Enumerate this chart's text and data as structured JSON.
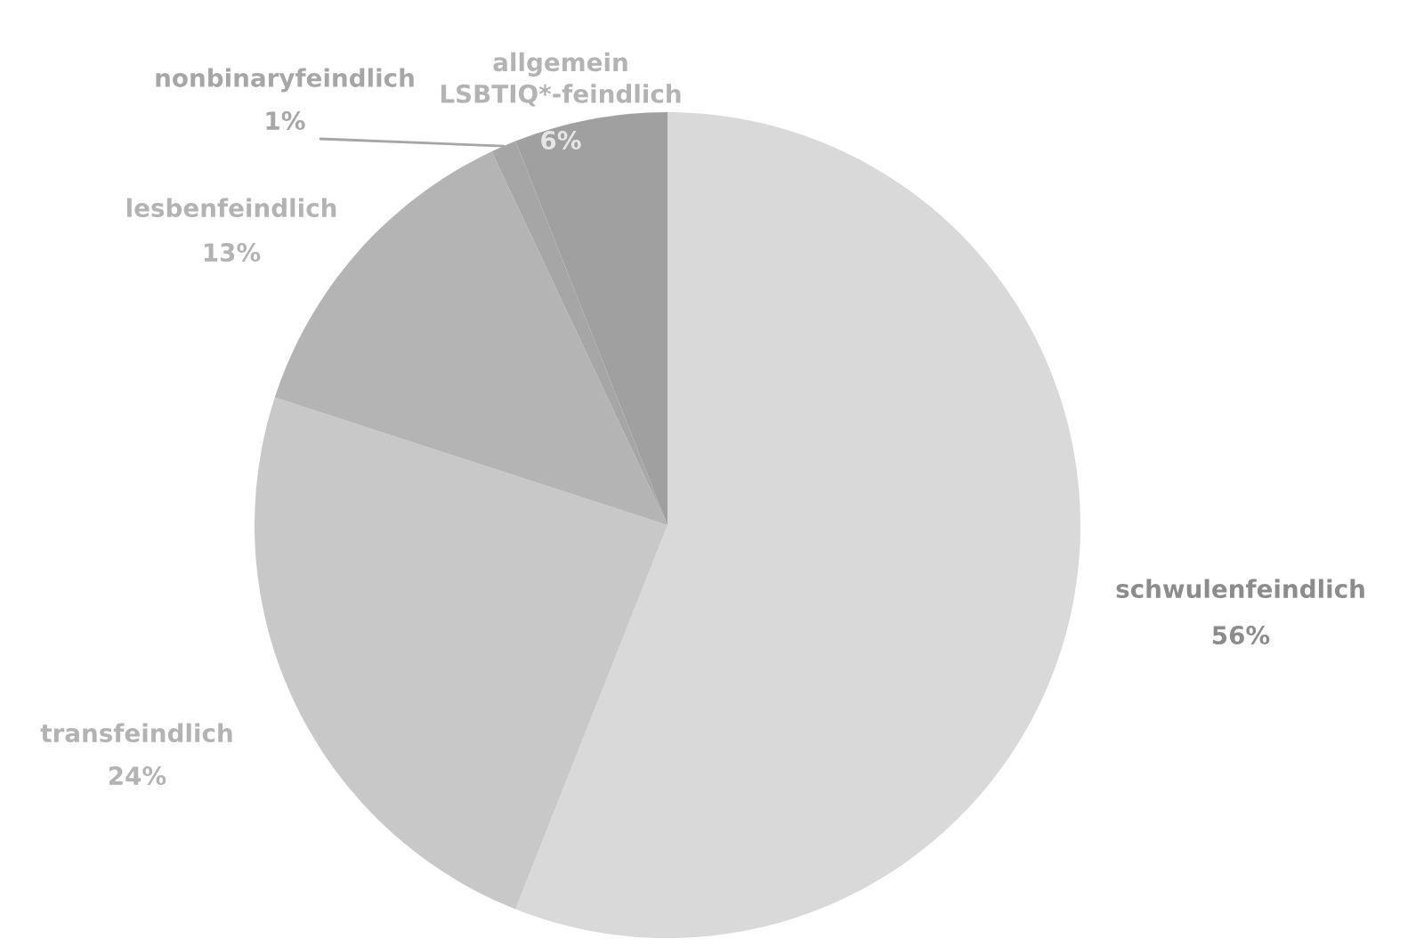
{
  "chart_data": {
    "type": "pie",
    "categories": [
      "schwulenfeindlich",
      "transfeindlich",
      "lesbenfeindlich",
      "nonbinaryfeindlich",
      "allgemein\nLSBTIQ*-feindlich"
    ],
    "values": [
      56,
      24,
      13,
      1,
      6
    ],
    "value_labels": [
      "56%",
      "24%",
      "13%",
      "1%",
      "6%"
    ],
    "colors": [
      "#d9d9d9",
      "#c8c8c8",
      "#b4b4b4",
      "#a6a6a6",
      "#a0a0a0"
    ]
  }
}
